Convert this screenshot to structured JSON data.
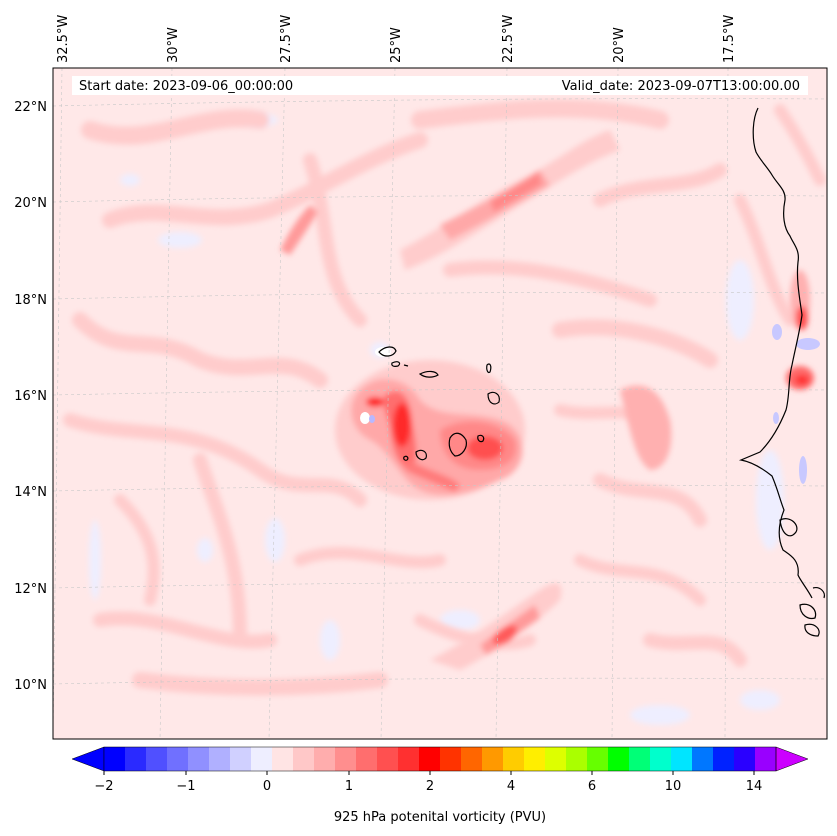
{
  "header": {
    "start_date": "Start date: 2023-09-06_00:00:00",
    "valid_date": "Valid_date: 2023-09-07T13:00:00.00"
  },
  "longitude_labels": [
    "32.5°W",
    "30°W",
    "27.5°W",
    "25°W",
    "22.5°W",
    "20°W",
    "17.5°W"
  ],
  "latitude_labels": [
    "22°N",
    "20°N",
    "18°N",
    "16°N",
    "14°N",
    "12°N",
    "10°N"
  ],
  "colorbar": {
    "title": "925 hPa potenital vorticity (PVU)",
    "tick_labels": [
      "−2",
      "−1",
      "0",
      "1",
      "2",
      "4",
      "6",
      "10",
      "14"
    ],
    "colors": [
      "#0000ff",
      "#2a2aff",
      "#5050ff",
      "#7070ff",
      "#9090ff",
      "#b0b0ff",
      "#d0d0ff",
      "#eeeeff",
      "#ffe4e4",
      "#ffc8c8",
      "#ffadad",
      "#ff8e8e",
      "#ff6e6e",
      "#ff5050",
      "#ff3030",
      "#ff0000",
      "#ff3300",
      "#ff6600",
      "#ff9900",
      "#ffcc00",
      "#ffee00",
      "#ddff00",
      "#aaff00",
      "#66ff00",
      "#00ff00",
      "#00ff77",
      "#00ffcc",
      "#00e5ff",
      "#0077ff",
      "#0022ff",
      "#2a00ff",
      "#9900ff"
    ],
    "under_color": "#0000ff",
    "over_color": "#cc00ff"
  },
  "colors": {
    "background_field": "#ffe8e8",
    "coastline": "#000000",
    "gridline": "#c8c8c8"
  }
}
